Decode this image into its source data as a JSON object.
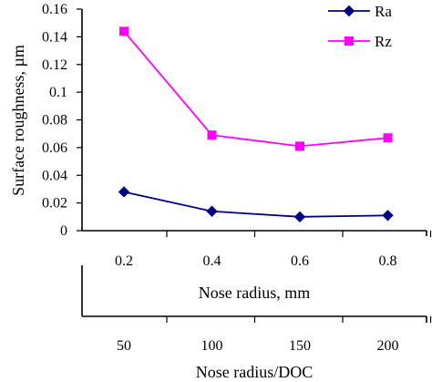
{
  "chart_data": {
    "type": "line",
    "x": [
      0.2,
      0.4,
      0.6,
      0.8
    ],
    "x_ticks": [
      "0.2",
      "0.4",
      "0.6",
      "0.8"
    ],
    "xlabel": "Nose radius, mm",
    "secondary_x_ticks": [
      "50",
      "100",
      "150",
      "200"
    ],
    "secondary_xlabel": "Nose radius/DOC",
    "ylabel": "Surface roughness, µm",
    "y_ticks": [
      "0",
      "0.02",
      "0.04",
      "0.06",
      "0.08",
      "0.1",
      "0.12",
      "0.14",
      "0.16"
    ],
    "ylim": [
      0,
      0.16
    ],
    "legend_position": "top-right",
    "grid": false,
    "series": [
      {
        "name": "Ra",
        "values": [
          0.028,
          0.014,
          0.01,
          0.011
        ],
        "color": "#000080",
        "marker": "diamond"
      },
      {
        "name": "Rz",
        "values": [
          0.144,
          0.069,
          0.061,
          0.067
        ],
        "color": "#FF00FF",
        "marker": "square"
      }
    ]
  }
}
